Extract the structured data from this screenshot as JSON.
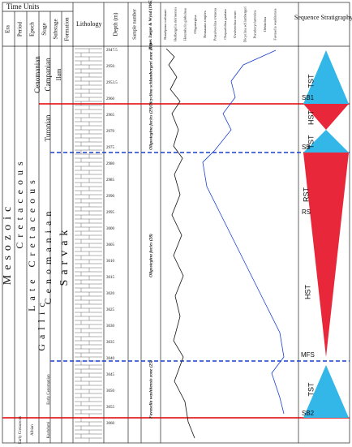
{
  "header": {
    "title": "Time Units",
    "columns": [
      "Era",
      "Period",
      "Epoch",
      "Stage",
      "Substage",
      "Formation"
    ],
    "lithology": "Lithology",
    "depth": "Depth (m)",
    "sample": "Sample number",
    "zones": "Zones Jaeger & Wynd (1965)",
    "sequence": "Sequence Stratigraphy"
  },
  "units": {
    "era": "Mesozoic",
    "period": "Cretaceous",
    "epoch_late": "Late Cretaceous",
    "epoch_early": "Early Cretaceous",
    "subperiod": "Gallic",
    "stage_top": "Cenomanian",
    "campanian": "Campanian",
    "ilam": "Ilam",
    "turonian": "Turonian",
    "cenomanian": "Cenomanian",
    "sarvak": "Sarvak",
    "early_cenomanian": "Early Cenomanian",
    "albian": "Albian",
    "kazhdumi": "Kazhdumi"
  },
  "zones": [
    "Dicyclina schlumbergeri zone (31)",
    "Oligostegina facies (29)",
    "Oligostegina facies (28)",
    "Favusella washitensis zone (25)"
  ],
  "depths": [
    "2947.5",
    "2950",
    "2953.5",
    "2960",
    "2965",
    "2970",
    "2975",
    "2980",
    "2985",
    "2990",
    "2995",
    "3000",
    "3005",
    "3010",
    "3015",
    "3020",
    "3025",
    "3030",
    "3035",
    "3040",
    "3045",
    "3050",
    "3055",
    "3060"
  ],
  "species": [
    "Rotalipora cushmani",
    "Hedbergella delrioensis",
    "Heterohelix globulosa",
    "Oligostegina",
    "Nezzazata simplex",
    "Praealveolina cretacea",
    "Chrysalidina gradata",
    "Ovalveolina ovum",
    "Dicyclina schlumbergeri",
    "Pseudocyclammina",
    "Orbitolina",
    "Favusella washitensis"
  ],
  "sequence": {
    "tst1": "TST",
    "sb1": "SB1",
    "hst1": "HST",
    "tst2": "TST",
    "sb": "SB",
    "rst": "RST",
    "rs": "RS",
    "hst2": "HST",
    "mfs": "MFS",
    "tst3": "TST",
    "sb2": "SB2"
  }
}
